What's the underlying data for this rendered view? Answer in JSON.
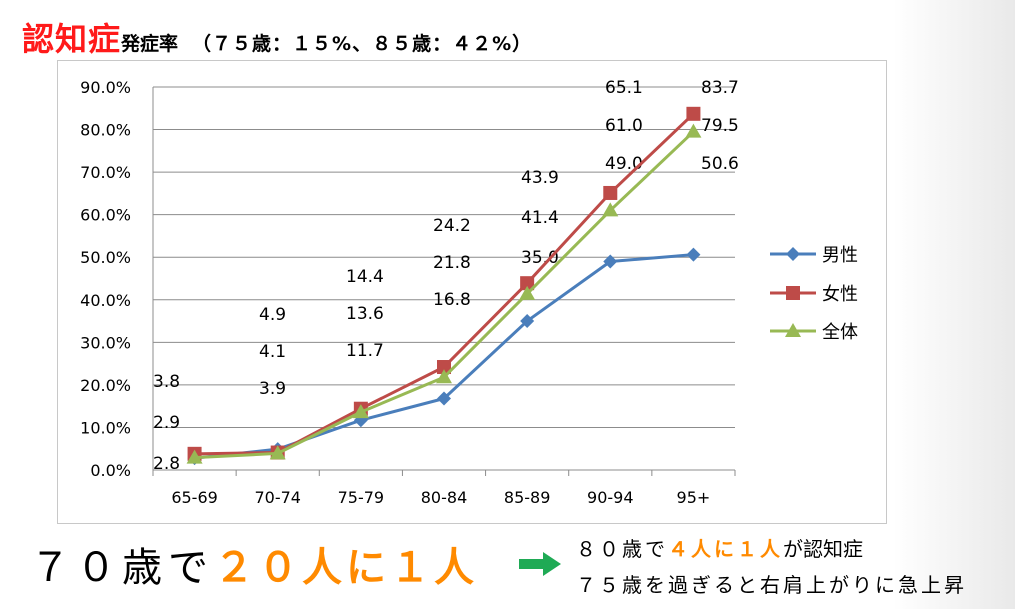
{
  "header": {
    "title_main": "認知症",
    "title_sub": "発症率",
    "title_note": "（７５歳：１５%、８５歳：４２%）"
  },
  "chart_data": {
    "type": "line",
    "categories": [
      "65-69",
      "70-74",
      "75-79",
      "80-84",
      "85-89",
      "90-94",
      "95+"
    ],
    "y_ticks": [
      "0.0%",
      "10.0%",
      "20.0%",
      "30.0%",
      "40.0%",
      "50.0%",
      "60.0%",
      "70.0%",
      "80.0%",
      "90.0%"
    ],
    "ylim": [
      0,
      90
    ],
    "grid": true,
    "legend_position": "right",
    "series": [
      {
        "name": "男性",
        "color": "#4a7ebb",
        "marker": "diamond",
        "values": [
          2.8,
          4.9,
          11.7,
          16.8,
          35.0,
          49.0,
          50.6
        ]
      },
      {
        "name": "女性",
        "color": "#be4b48",
        "marker": "square",
        "values": [
          3.8,
          4.1,
          14.4,
          24.2,
          43.9,
          65.1,
          83.7
        ]
      },
      {
        "name": "全体",
        "color": "#98b954",
        "marker": "triangle",
        "values": [
          2.9,
          3.9,
          13.6,
          21.8,
          41.4,
          61.0,
          79.5
        ]
      }
    ],
    "value_labels": [
      {
        "category": "65-69",
        "lines": [
          "3.8",
          "2.9",
          "2.8"
        ]
      },
      {
        "category": "70-74",
        "lines": [
          "4.9",
          "4.1",
          "3.9"
        ]
      },
      {
        "category": "75-79",
        "lines": [
          "14.4",
          "13.6",
          "11.7"
        ]
      },
      {
        "category": "80-84",
        "lines": [
          "24.2",
          "21.8",
          "16.8"
        ]
      },
      {
        "category": "85-89",
        "lines": [
          "43.9",
          "41.4",
          "35.0"
        ]
      },
      {
        "category": "90-94",
        "lines": [
          "65.1",
          "61.0",
          "49.0"
        ]
      },
      {
        "category": "95+",
        "lines": [
          "83.7",
          "79.5",
          "50.6"
        ]
      }
    ]
  },
  "footer": {
    "left_a": "７０歳で",
    "left_b": "２０人に１人",
    "arrow_icon": "right-arrow-icon",
    "arrow_color": "#1faa55",
    "right_line1_a": "８０歳で",
    "right_line1_b": "４人に１人",
    "right_line1_c": "が認知症",
    "right_line2": "７５歳を過ぎると右肩上がりに急上昇"
  }
}
